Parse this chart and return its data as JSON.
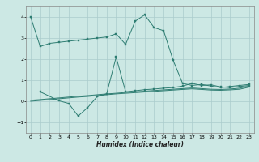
{
  "xlabel": "Humidex (Indice chaleur)",
  "bg_color": "#cce8e4",
  "grid_color": "#aacccc",
  "line_color": "#2e7d72",
  "xlim": [
    -0.5,
    23.5
  ],
  "ylim": [
    -1.5,
    4.5
  ],
  "xticks": [
    0,
    1,
    2,
    3,
    4,
    5,
    6,
    7,
    8,
    9,
    10,
    11,
    12,
    13,
    14,
    15,
    16,
    17,
    18,
    19,
    20,
    21,
    22,
    23
  ],
  "yticks": [
    -1,
    0,
    1,
    2,
    3,
    4
  ],
  "line1_x": [
    0,
    1,
    2,
    3,
    4,
    5,
    6,
    7,
    8,
    9,
    10,
    11,
    12,
    13,
    14,
    15,
    16,
    17,
    18,
    19,
    20,
    21,
    22,
    23
  ],
  "line1_y": [
    4.0,
    2.6,
    2.75,
    2.8,
    2.85,
    2.9,
    2.95,
    3.0,
    3.05,
    3.2,
    2.7,
    3.8,
    4.1,
    3.5,
    3.35,
    1.95,
    0.85,
    0.75,
    0.8,
    0.72,
    0.65,
    0.7,
    0.75,
    0.8
  ],
  "line2_x": [
    1,
    3,
    4,
    5,
    6,
    7,
    8,
    9,
    10,
    11,
    12,
    13,
    14,
    15,
    16,
    17,
    18,
    19,
    20,
    21,
    22,
    23
  ],
  "line2_y": [
    0.45,
    0.02,
    -0.1,
    -0.7,
    -0.3,
    0.22,
    0.35,
    2.1,
    0.45,
    0.5,
    0.55,
    0.58,
    0.62,
    0.65,
    0.72,
    0.85,
    0.75,
    0.78,
    0.68,
    0.65,
    0.7,
    0.75
  ],
  "line3_x": [
    0,
    1,
    2,
    3,
    4,
    5,
    6,
    7,
    8,
    9,
    10,
    11,
    12,
    13,
    14,
    15,
    16,
    17,
    18,
    19,
    20,
    21,
    22,
    23
  ],
  "line3_y": [
    0.05,
    0.08,
    0.12,
    0.16,
    0.2,
    0.24,
    0.27,
    0.31,
    0.35,
    0.38,
    0.42,
    0.45,
    0.48,
    0.51,
    0.54,
    0.57,
    0.6,
    0.63,
    0.6,
    0.57,
    0.56,
    0.58,
    0.62,
    0.72
  ],
  "line4_x": [
    0,
    1,
    2,
    3,
    4,
    5,
    6,
    7,
    8,
    9,
    10,
    11,
    12,
    13,
    14,
    15,
    16,
    17,
    18,
    19,
    20,
    21,
    22,
    23
  ],
  "line4_y": [
    0.0,
    0.04,
    0.08,
    0.12,
    0.16,
    0.2,
    0.23,
    0.27,
    0.31,
    0.35,
    0.38,
    0.41,
    0.44,
    0.47,
    0.5,
    0.53,
    0.56,
    0.59,
    0.56,
    0.53,
    0.52,
    0.54,
    0.57,
    0.67
  ]
}
